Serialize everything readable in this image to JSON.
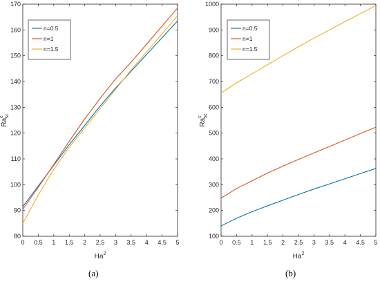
{
  "chart_data": [
    {
      "type": "line",
      "caption": "(a)",
      "xlabel": "Ha",
      "xlabel_sup": "2",
      "ylabel": "Ra",
      "ylabel_sup": "c",
      "ylabel_sub": "sc",
      "xlim": [
        0,
        5
      ],
      "ylim": [
        80,
        170
      ],
      "xticks": [
        "0",
        "0.5",
        "1",
        "1.5",
        "2",
        "2.5",
        "3",
        "3.5",
        "4",
        "4.5",
        "5"
      ],
      "yticks": [
        "80",
        "90",
        "100",
        "110",
        "120",
        "130",
        "140",
        "150",
        "160",
        "170"
      ],
      "legend_position": "top-left",
      "grid": false,
      "x": [
        0,
        0.5,
        1,
        1.5,
        2,
        2.5,
        3,
        3.5,
        4,
        4.5,
        5
      ],
      "series": [
        {
          "name": "n=0.5",
          "color": "#0072BD",
          "values": [
            91.5,
            99.5,
            107.5,
            115.5,
            123,
            130.5,
            137.5,
            144,
            150.5,
            157,
            163.5
          ]
        },
        {
          "name": "n=1",
          "color": "#D95319",
          "values": [
            90.5,
            99,
            107.8,
            116.8,
            125.5,
            133.5,
            141,
            147.5,
            154.5,
            161.5,
            168.5
          ]
        },
        {
          "name": "n=1.5",
          "color": "#EDB120",
          "values": [
            85,
            96,
            106,
            114.5,
            122,
            129.5,
            137,
            144.5,
            151.5,
            158.5,
            165.5
          ]
        }
      ]
    },
    {
      "type": "line",
      "caption": "(b)",
      "xlabel": "Ha",
      "xlabel_sup": "2",
      "ylabel": "Ra",
      "ylabel_sup": "c",
      "ylabel_sub": "sc",
      "xlim": [
        0,
        5
      ],
      "ylim": [
        100,
        1000
      ],
      "xticks": [
        "0",
        "0.5",
        "1",
        "1.5",
        "2",
        "2.5",
        "3",
        "3.5",
        "4",
        "4.5",
        "5"
      ],
      "yticks": [
        "100",
        "200",
        "300",
        "400",
        "500",
        "600",
        "700",
        "800",
        "900",
        "1000"
      ],
      "legend_position": "top-left",
      "grid": false,
      "x": [
        0,
        0.5,
        1,
        1.5,
        2,
        2.5,
        3,
        3.5,
        4,
        4.5,
        5
      ],
      "series": [
        {
          "name": "n=0.5",
          "color": "#0072BD",
          "values": [
            140,
            170,
            195,
            218,
            240,
            262,
            283,
            303,
            323,
            343,
            363
          ]
        },
        {
          "name": "n=1",
          "color": "#D95319",
          "values": [
            248,
            285,
            315,
            345,
            372,
            398,
            423,
            448,
            473,
            498,
            523
          ]
        },
        {
          "name": "n=1.5",
          "color": "#EDB120",
          "values": [
            655,
            695,
            730,
            765,
            800,
            835,
            868,
            900,
            932,
            963,
            995
          ]
        }
      ]
    }
  ]
}
